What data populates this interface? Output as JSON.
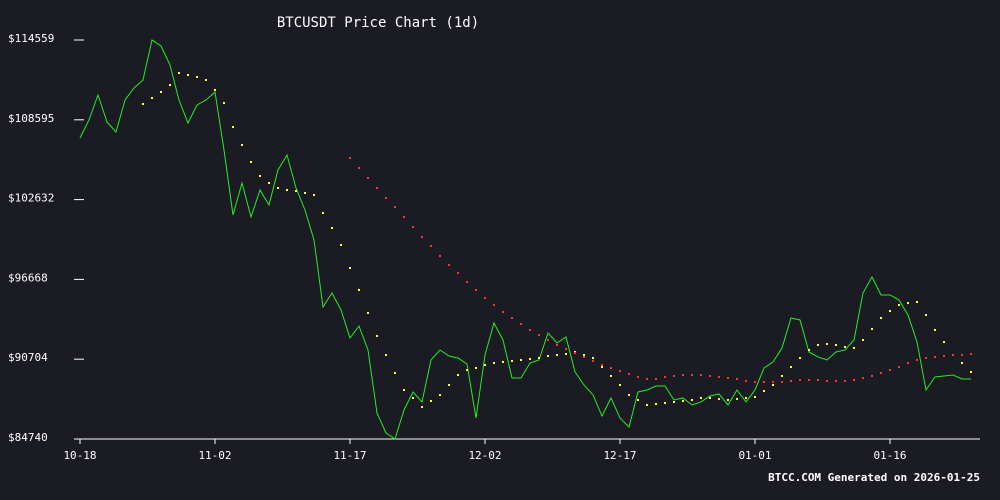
{
  "chart_data": {
    "type": "line",
    "title": "BTCUSDT Price Chart (1d)",
    "footer": "BTCC.COM Generated on 2026-01-25",
    "categories": [
      "10-18",
      "10-19",
      "10-20",
      "10-21",
      "10-22",
      "10-23",
      "10-24",
      "10-25",
      "10-26",
      "10-27",
      "10-28",
      "10-29",
      "10-30",
      "10-31",
      "11-01",
      "11-02",
      "11-03",
      "11-04",
      "11-05",
      "11-06",
      "11-07",
      "11-08",
      "11-09",
      "11-10",
      "11-11",
      "11-12",
      "11-13",
      "11-14",
      "11-15",
      "11-16",
      "11-17",
      "11-18",
      "11-19",
      "11-20",
      "11-21",
      "11-22",
      "11-23",
      "11-24",
      "11-25",
      "11-26",
      "11-27",
      "11-28",
      "11-29",
      "11-30",
      "12-01",
      "12-02",
      "12-03",
      "12-04",
      "12-05",
      "12-06",
      "12-07",
      "12-08",
      "12-09",
      "12-10",
      "12-11",
      "12-12",
      "12-13",
      "12-14",
      "12-15",
      "12-16",
      "12-17",
      "12-18",
      "12-19",
      "12-20",
      "12-21",
      "12-22",
      "12-23",
      "12-24",
      "12-25",
      "12-26",
      "12-27",
      "12-28",
      "12-29",
      "12-30",
      "12-31",
      "01-01",
      "01-02",
      "01-03",
      "01-04",
      "01-05",
      "01-06",
      "01-07",
      "01-08",
      "01-09",
      "01-10",
      "01-11",
      "01-12",
      "01-13",
      "01-14",
      "01-15",
      "01-16",
      "01-17",
      "01-18",
      "01-19",
      "01-20",
      "01-21",
      "01-22",
      "01-23",
      "01-24",
      "01-25"
    ],
    "xtick_every": 15,
    "series": [
      {
        "style": "line",
        "color": "#22ee22",
        "values": [
          107235,
          108581,
          110449,
          108431,
          107684,
          110075,
          110972,
          111570,
          114559,
          114111,
          112691,
          110075,
          108356,
          109702,
          110075,
          110673,
          106339,
          101481,
          103873,
          101332,
          103349,
          102229,
          104844,
          105965,
          103499,
          101855,
          99613,
          94606,
          95652,
          94382,
          92289,
          93186,
          91393,
          86685,
          85190,
          84740,
          86909,
          88254,
          87507,
          90645,
          91393,
          90944,
          90795,
          90346,
          86311,
          91019,
          93410,
          92140,
          89300,
          89300,
          90421,
          90645,
          92663,
          91916,
          92364,
          89749,
          88777,
          88030,
          86461,
          87806,
          86311,
          85638,
          88254,
          88403,
          88702,
          88702,
          87656,
          87806,
          87283,
          87507,
          87955,
          88105,
          87283,
          88403,
          87507,
          88403,
          90048,
          90496,
          91542,
          93784,
          93635,
          91243,
          90870,
          90645,
          91243,
          91393,
          92140,
          95652,
          96848,
          95503,
          95503,
          95129,
          94008,
          91991,
          88403,
          89375,
          89450,
          89524,
          89226,
          89226
        ]
      },
      {
        "style": "dots",
        "color": "#ffff33",
        "values": [
          null,
          null,
          null,
          null,
          null,
          null,
          null,
          109776,
          110225,
          110673,
          111196,
          112093,
          111943,
          111794,
          111570,
          110822,
          109851,
          108057,
          106712,
          105442,
          104396,
          103873,
          103499,
          103349,
          103275,
          103125,
          102976,
          101631,
          100510,
          99239,
          97521,
          95876,
          94158,
          92439,
          91019,
          89674,
          88403,
          87806,
          87133,
          87581,
          88030,
          88777,
          89524,
          89898,
          90048,
          90272,
          90421,
          90496,
          90571,
          90645,
          90720,
          90795,
          90944,
          91019,
          91094,
          91243,
          91019,
          90795,
          90122,
          89450,
          88777,
          88030,
          87656,
          87283,
          87357,
          87432,
          87507,
          87581,
          87656,
          87806,
          87806,
          87731,
          87656,
          87731,
          87806,
          87880,
          88329,
          88777,
          89450,
          90122,
          90795,
          91393,
          91766,
          91841,
          91766,
          91617,
          91542,
          92140,
          92962,
          93784,
          94307,
          94756,
          94905,
          94980,
          94008,
          92887,
          91991,
          91019,
          90421,
          89749
        ]
      },
      {
        "style": "dots",
        "color": "#ff3333",
        "values": [
          null,
          null,
          null,
          null,
          null,
          null,
          null,
          null,
          null,
          null,
          null,
          null,
          null,
          null,
          null,
          null,
          null,
          null,
          null,
          null,
          null,
          null,
          null,
          null,
          null,
          null,
          null,
          null,
          null,
          null,
          105741,
          104994,
          104246,
          103499,
          102752,
          102079,
          101332,
          100584,
          99837,
          99165,
          98417,
          97745,
          97147,
          96474,
          95876,
          95279,
          94756,
          94232,
          93784,
          93336,
          92887,
          92514,
          92140,
          91766,
          91467,
          91169,
          90870,
          90571,
          90272,
          90048,
          89823,
          89599,
          89375,
          89226,
          89226,
          89375,
          89450,
          89524,
          89524,
          89524,
          89450,
          89375,
          89300,
          89226,
          89076,
          89001,
          89001,
          89001,
          89001,
          89076,
          89151,
          89151,
          89151,
          89076,
          89076,
          89076,
          89151,
          89300,
          89450,
          89674,
          89898,
          90122,
          90421,
          90645,
          90795,
          90870,
          90944,
          91019,
          91019,
          91094
        ]
      }
    ],
    "ylim": [
      84740,
      114559
    ],
    "yticks": [
      {
        "value": 84740,
        "label": "$84740"
      },
      {
        "value": 90704,
        "label": "$90704"
      },
      {
        "value": 96668,
        "label": "$96668"
      },
      {
        "value": 102632,
        "label": "$102632"
      },
      {
        "value": 108595,
        "label": "$108595"
      },
      {
        "value": 114559,
        "label": "$114559"
      }
    ]
  }
}
